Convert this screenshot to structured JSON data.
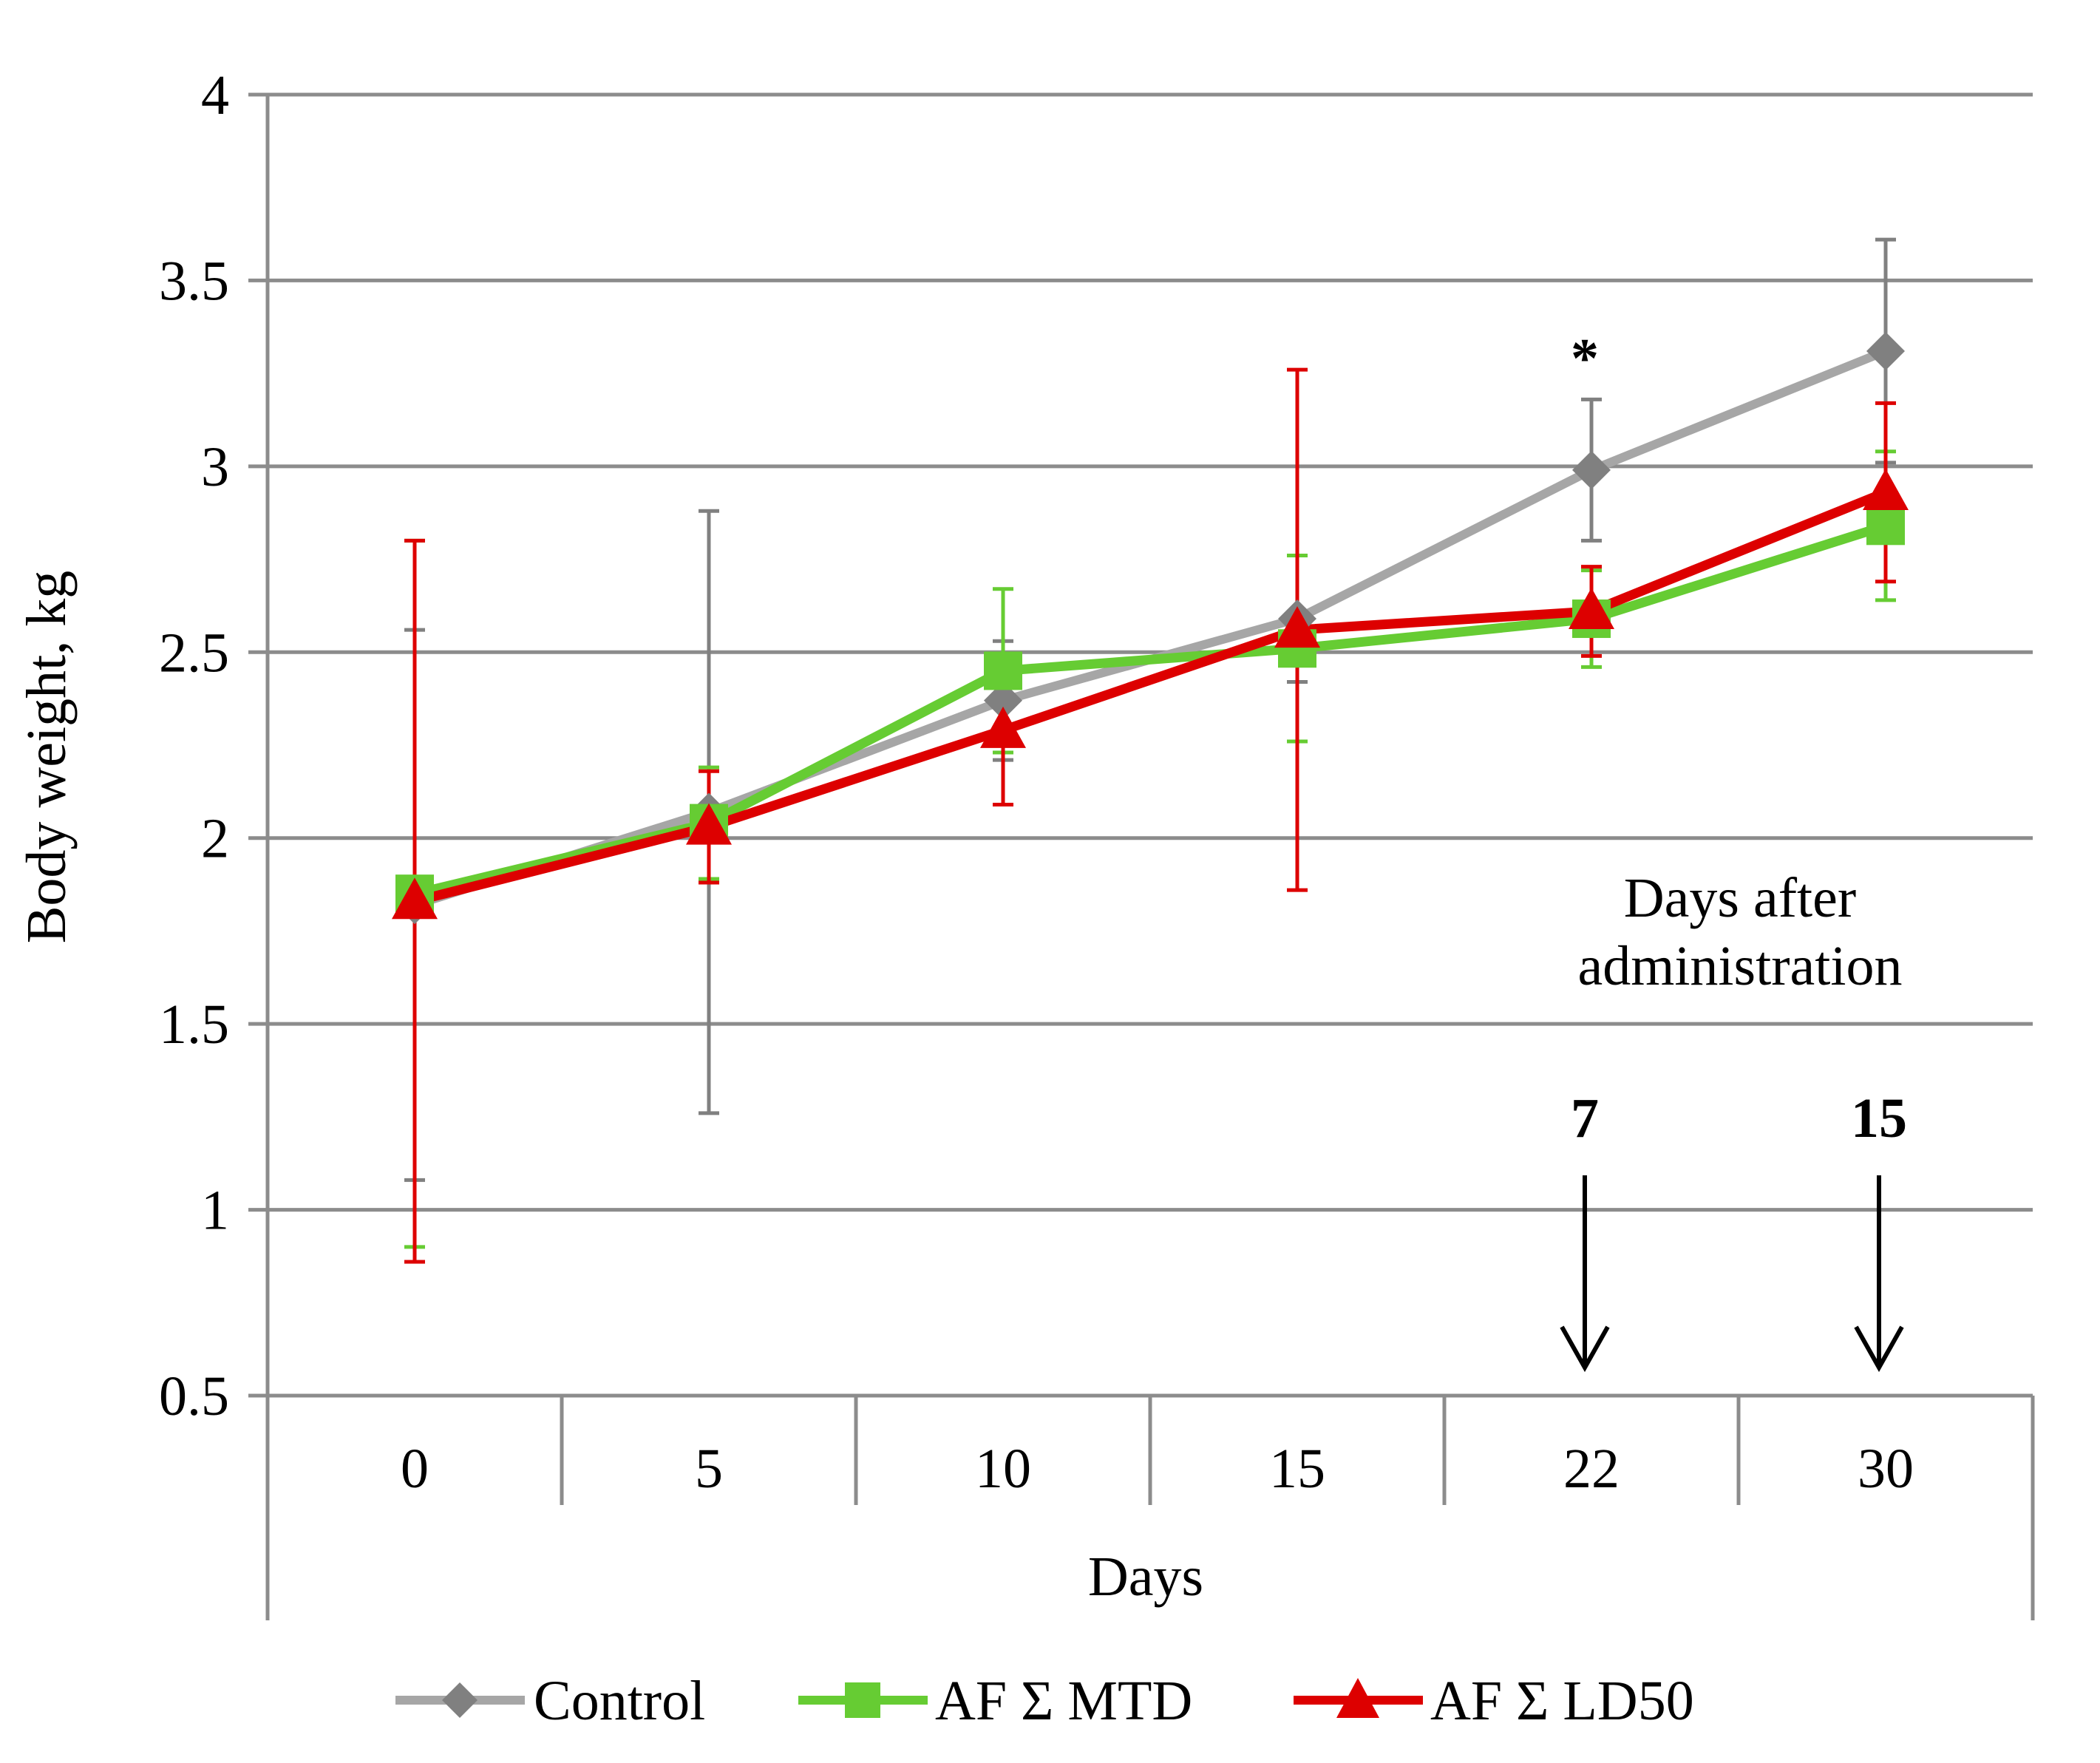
{
  "chart_data": {
    "type": "line",
    "title": "",
    "xlabel": "Days",
    "ylabel": "Body weight, kg",
    "categories": [
      "0",
      "5",
      "10",
      "15",
      "22",
      "30"
    ],
    "ylim": [
      0.5,
      4
    ],
    "yticks": [
      0.5,
      1,
      1.5,
      2,
      2.5,
      3,
      3.5,
      4
    ],
    "ytick_labels": [
      "0.5",
      "1",
      "1.5",
      "2",
      "2.5",
      "3",
      "3.5",
      "4"
    ],
    "grid": true,
    "legend_position": "bottom",
    "series": [
      {
        "name": "Control",
        "color": "#a6a6a6",
        "marker_color": "#808080",
        "errbar_color": "#808080",
        "marker": "diamond",
        "values": [
          1.82,
          2.07,
          2.37,
          2.59,
          2.99,
          3.31
        ],
        "errors": [
          0.74,
          0.81,
          0.16,
          0.17,
          0.19,
          0.3
        ]
      },
      {
        "name": "AF Σ MTD",
        "color": "#66cc33",
        "marker_color": "#66cc33",
        "errbar_color": "#66cc33",
        "marker": "square",
        "values": [
          1.85,
          2.04,
          2.45,
          2.51,
          2.59,
          2.84
        ],
        "errors": [
          0.95,
          0.15,
          0.22,
          0.25,
          0.13,
          0.2
        ]
      },
      {
        "name": "AF Σ LD50",
        "color": "#dd0000",
        "marker_color": "#dd0000",
        "errbar_color": "#dd0000",
        "marker": "triangle",
        "values": [
          1.83,
          2.03,
          2.29,
          2.56,
          2.61,
          2.93
        ],
        "errors": [
          0.97,
          0.15,
          0.2,
          0.7,
          0.12,
          0.24
        ]
      }
    ],
    "annotations": {
      "significance_mark": "*",
      "admin_label_line1": "Days after",
      "admin_label_line2": "administration",
      "admin_day_7": "7",
      "admin_day_15": "15"
    }
  }
}
